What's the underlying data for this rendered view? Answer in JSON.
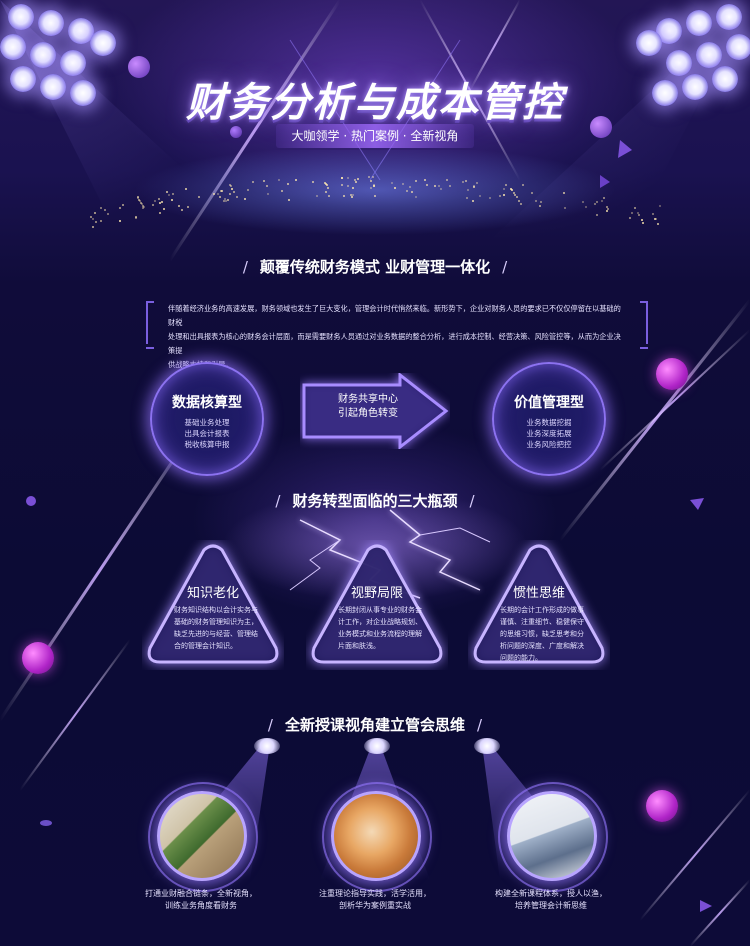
{
  "colors": {
    "accent": "#8c72f0",
    "background": "#0c0b35",
    "gem": "#c040e8"
  },
  "hero": {
    "title": "财务分析与成本管控",
    "tagline": "大咖领学  ·  热门案例  ·  全新视角"
  },
  "section1": {
    "heading": "颠覆传统财务模式  业财管理一体化",
    "intro_line1": "伴随着经济业务的高速发展，财务领域也发生了巨大变化，管理会计时代悄然来临。新形势下，企业对财务人员的要求已不仅仅停留在以基础的财税",
    "intro_line2": "处理和出具报表为核心的财务会计层面，而是需要财务人员通过对业务数据的整合分析，进行成本控制、经营决策、风险管控等，从而为企业决策提",
    "intro_line3": "供战略支持和引导。",
    "left_circle": {
      "title": "数据核算型",
      "items": [
        "基础业务处理",
        "出具会计报表",
        "税收核算申报"
      ]
    },
    "arrow": {
      "line1": "财务共享中心",
      "line2": "引起角色转变"
    },
    "right_circle": {
      "title": "价值管理型",
      "items": [
        "业务数据挖掘",
        "业务深度拓展",
        "业务风险把控"
      ]
    }
  },
  "section2": {
    "heading": "财务转型面临的三大瓶颈",
    "cards": [
      {
        "title": "知识老化",
        "lines": [
          "财务知识结构以会计实务与",
          "基础的财务管理知识为主，",
          "缺乏先进的与经营、管理结",
          "合的管理会计知识。"
        ]
      },
      {
        "title": "视野局限",
        "lines": [
          "长期封闭从事专业的财务会",
          "计工作，对企业战略规划、",
          "业务模式和业务流程的理解",
          "片面和肤浅。"
        ]
      },
      {
        "title": "惯性思维",
        "lines": [
          "长期的会计工作形成的做事",
          "谨慎、注重细节、稳健保守",
          "的思维习惯，缺乏思考和分",
          "析问题的深度、广度和解决",
          "问题的能力。"
        ]
      }
    ]
  },
  "section3": {
    "heading": "全新授课视角建立管会思维",
    "items": [
      {
        "line1": "打通业财融合链条，全新视角，",
        "line2": "训练业务角度看财务",
        "photo": "office-workspace"
      },
      {
        "line1": "注重理论指导实践，活学活用，",
        "line2": "剖析华为案例重实战",
        "photo": "writing-notes"
      },
      {
        "line1": "构建全新课程体系，授人以渔，",
        "line2": "培养管理会计新思维",
        "photo": "calculator-documents"
      }
    ]
  }
}
